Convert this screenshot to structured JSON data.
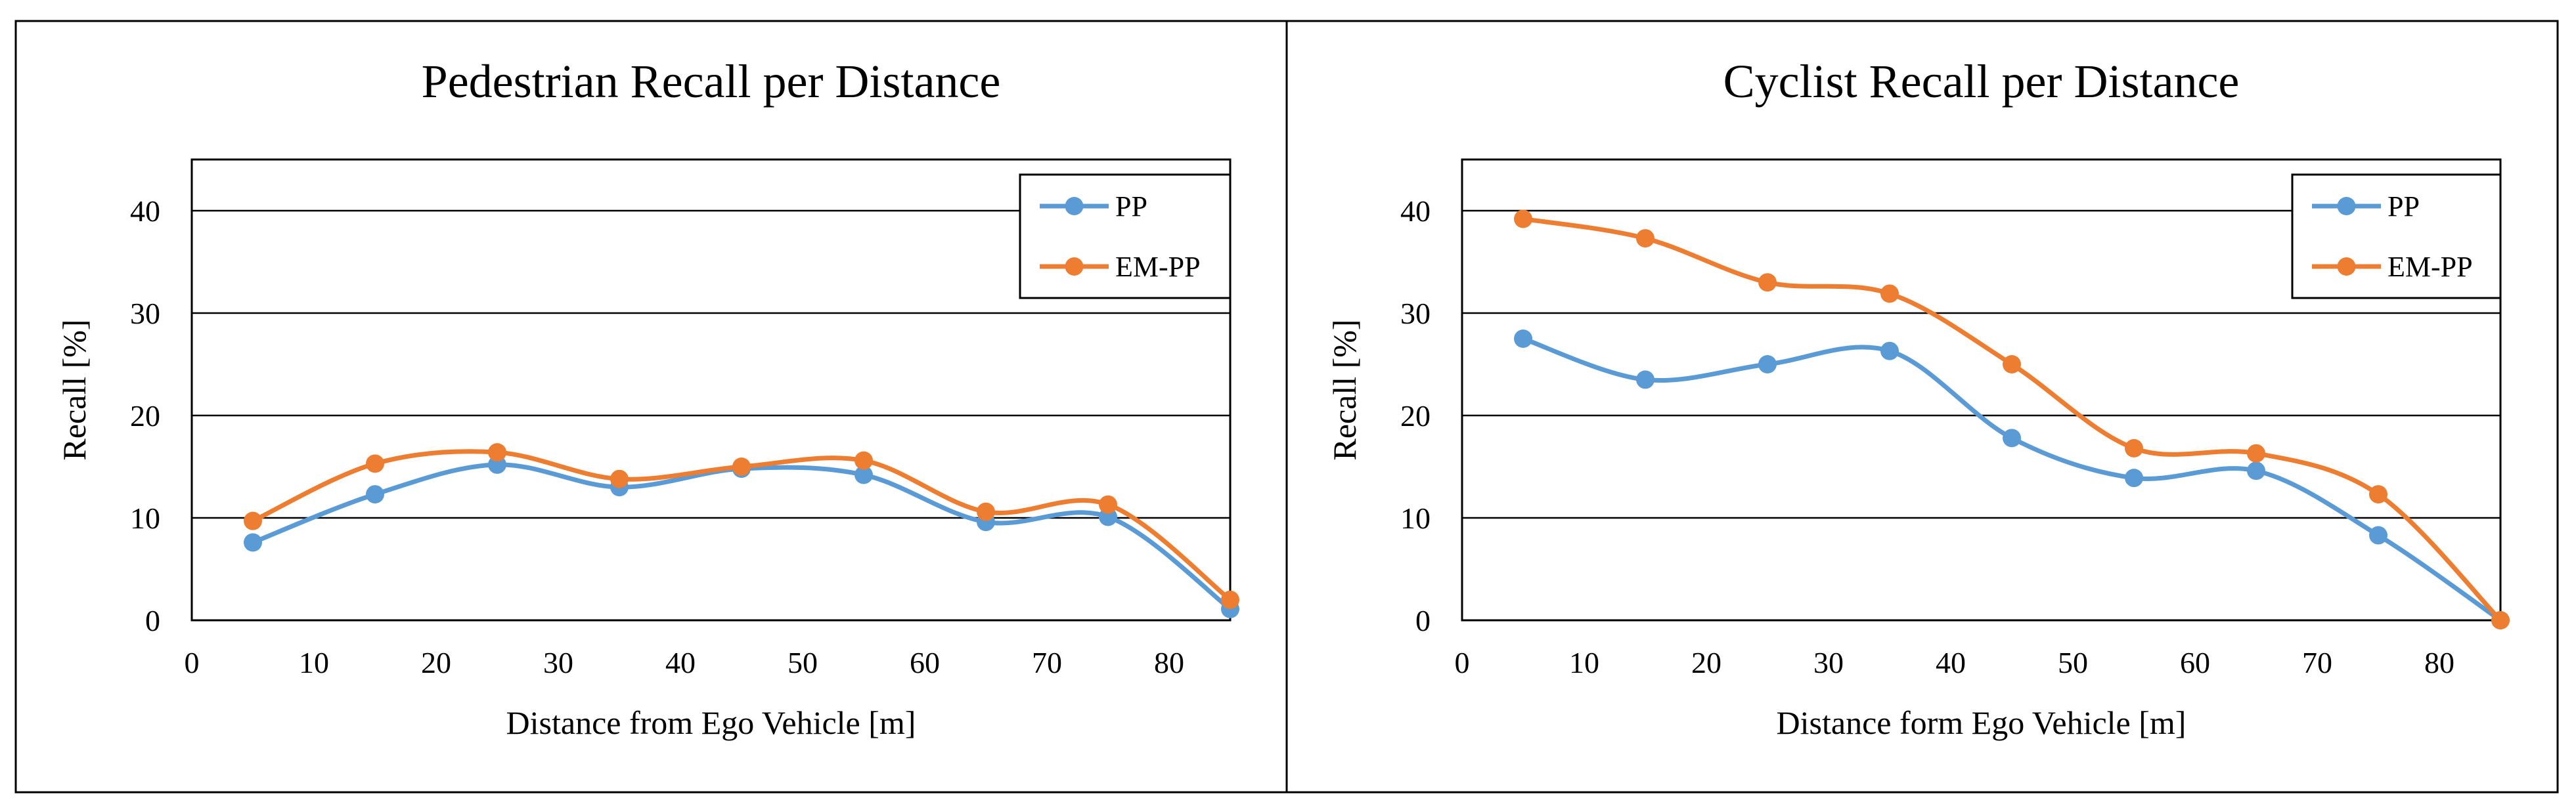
{
  "chart_data": [
    {
      "type": "line",
      "title": "Pedestrian Recall per Distance",
      "xlabel": "Distance from Ego Vehicle [m]",
      "ylabel": "Recall [%]",
      "xlim": [
        0,
        85
      ],
      "ylim": [
        0,
        45
      ],
      "xticks": [
        0,
        10,
        20,
        30,
        40,
        50,
        60,
        70,
        80
      ],
      "yticks": [
        0,
        10,
        20,
        30,
        40
      ],
      "grid": "horizontal",
      "legend_position": "top-right",
      "x": [
        5,
        15,
        25,
        35,
        45,
        55,
        65,
        75,
        85
      ],
      "series": [
        {
          "name": "PP",
          "color": "#5b9bd5",
          "values": [
            7.6,
            12.3,
            15.2,
            13.0,
            14.8,
            14.2,
            9.6,
            10.1,
            1.1
          ]
        },
        {
          "name": "EM-PP",
          "color": "#ed7d31",
          "values": [
            9.7,
            15.3,
            16.4,
            13.8,
            15.0,
            15.6,
            10.6,
            11.3,
            2.0
          ]
        }
      ]
    },
    {
      "type": "line",
      "title": "Cyclist Recall per Distance",
      "xlabel": "Distance form Ego Vehicle [m]",
      "ylabel": "Recall [%]",
      "xlim": [
        0,
        85
      ],
      "ylim": [
        0,
        45
      ],
      "xticks": [
        0,
        10,
        20,
        30,
        40,
        50,
        60,
        70,
        80
      ],
      "yticks": [
        0,
        10,
        20,
        30,
        40
      ],
      "grid": "horizontal",
      "legend_position": "top-right",
      "x": [
        5,
        15,
        25,
        35,
        45,
        55,
        65,
        75,
        85
      ],
      "series": [
        {
          "name": "PP",
          "color": "#5b9bd5",
          "values": [
            27.5,
            23.5,
            25.0,
            26.3,
            17.8,
            13.9,
            14.6,
            8.3,
            0.0
          ]
        },
        {
          "name": "EM-PP",
          "color": "#ed7d31",
          "values": [
            39.2,
            37.3,
            33.0,
            31.9,
            25.0,
            16.8,
            16.3,
            12.3,
            0.0
          ]
        }
      ]
    }
  ]
}
